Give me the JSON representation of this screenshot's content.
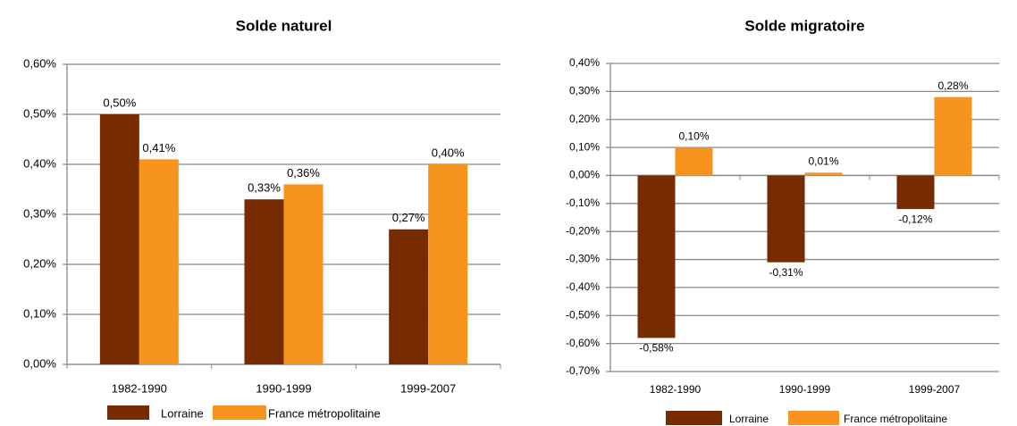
{
  "chart_data": [
    {
      "type": "bar",
      "title": "Solde naturel",
      "categories": [
        "1982-1990",
        "1990-1999",
        "1999-2007"
      ],
      "series": [
        {
          "name": "Lorraine",
          "color": "#772b00",
          "values": [
            0.5,
            0.33,
            0.27
          ],
          "value_labels": [
            "0,50%",
            "0,33%",
            "0,27%"
          ]
        },
        {
          "name": "France métropolitaine",
          "color": "#f7941d",
          "values": [
            0.41,
            0.36,
            0.4
          ],
          "value_labels": [
            "0,41%",
            "0,36%",
            "0,40%"
          ]
        }
      ],
      "ylim": [
        0,
        0.6
      ],
      "yticks": [
        {
          "value": 0,
          "label": "0,00%"
        },
        {
          "value": 0.1,
          "label": "0,10%"
        },
        {
          "value": 0.2,
          "label": "0,20%"
        },
        {
          "value": 0.3,
          "label": "0,30%"
        },
        {
          "value": 0.4,
          "label": "0,40%"
        },
        {
          "value": 0.5,
          "label": "0,50%"
        },
        {
          "value": 0.6,
          "label": "0,60%"
        }
      ],
      "grid": true,
      "legend": "bottom"
    },
    {
      "type": "bar",
      "title": "Solde migratoire",
      "categories": [
        "1982-1990",
        "1990-1999",
        "1999-2007"
      ],
      "series": [
        {
          "name": "Lorraine",
          "color": "#772b00",
          "values": [
            -0.58,
            -0.31,
            -0.12
          ],
          "value_labels": [
            "-0,58%",
            "-0,31%",
            "-0,12%"
          ]
        },
        {
          "name": "France métropolitaine",
          "color": "#f7941d",
          "values": [
            0.1,
            0.01,
            0.28
          ],
          "value_labels": [
            "0,10%",
            "0,01%",
            "0,28%"
          ]
        }
      ],
      "ylim": [
        -0.7,
        0.4
      ],
      "yticks": [
        {
          "value": -0.7,
          "label": "-0,70%"
        },
        {
          "value": -0.6,
          "label": "-0,60%"
        },
        {
          "value": -0.5,
          "label": "-0,50%"
        },
        {
          "value": -0.4,
          "label": "-0,40%"
        },
        {
          "value": -0.3,
          "label": "-0,30%"
        },
        {
          "value": -0.2,
          "label": "-0,20%"
        },
        {
          "value": -0.1,
          "label": "-0,10%"
        },
        {
          "value": 0,
          "label": "0,00%"
        },
        {
          "value": 0.1,
          "label": "0,10%"
        },
        {
          "value": 0.2,
          "label": "0,20%"
        },
        {
          "value": 0.3,
          "label": "0,30%"
        },
        {
          "value": 0.4,
          "label": "0,40%"
        }
      ],
      "grid": true,
      "legend": "bottom"
    }
  ]
}
